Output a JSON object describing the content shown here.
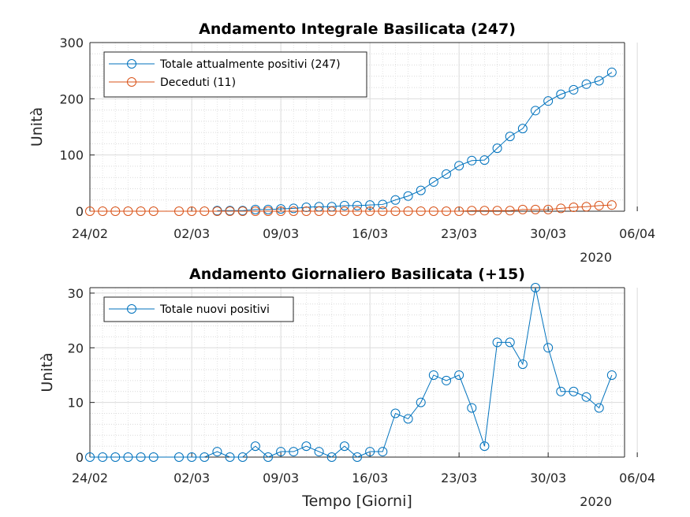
{
  "chart_data": [
    {
      "type": "line",
      "title": "Andamento Integrale Basilicata (247)",
      "xlabel": "",
      "ylabel": "Unità",
      "x": [
        "24/02",
        "25/02",
        "26/02",
        "27/02",
        "28/02",
        "29/02",
        "01/03",
        "02/03",
        "03/03",
        "04/03",
        "05/03",
        "06/03",
        "07/03",
        "08/03",
        "09/03",
        "10/03",
        "11/03",
        "12/03",
        "13/03",
        "14/03",
        "15/03",
        "16/03",
        "17/03",
        "18/03",
        "19/03",
        "20/03",
        "21/03",
        "22/03",
        "23/03",
        "24/03",
        "25/03",
        "26/03",
        "27/03",
        "28/03",
        "29/03",
        "30/03",
        "31/03",
        "01/04",
        "02/04",
        "03/04",
        "04/04"
      ],
      "xticks": [
        "24/02",
        "02/03",
        "09/03",
        "16/03",
        "23/03",
        "30/03",
        "06/04"
      ],
      "xyear": "2020",
      "yticks": [
        0,
        100,
        200,
        300
      ],
      "ylim": [
        0,
        300
      ],
      "grid": true,
      "legend": "top-left",
      "series": [
        {
          "name": "Totale attualmente positivi (247)",
          "color": "#0072BD",
          "values": [
            null,
            null,
            null,
            null,
            null,
            null,
            null,
            null,
            null,
            1,
            1,
            1,
            3,
            3,
            4,
            5,
            7,
            8,
            8,
            10,
            10,
            11,
            12,
            20,
            27,
            37,
            52,
            66,
            81,
            90,
            91,
            112,
            133,
            147,
            179,
            196,
            208,
            216,
            226,
            232,
            247
          ]
        },
        {
          "name": "Deceduti (11)",
          "color": "#D95319",
          "values": [
            0,
            0,
            0,
            0,
            0,
            0,
            0,
            0,
            0,
            0,
            0,
            0,
            0,
            0,
            0,
            0,
            0,
            0,
            0,
            0,
            0,
            0,
            0,
            0,
            0,
            0,
            0,
            0,
            0,
            1,
            1,
            1,
            1,
            3,
            3,
            3,
            5,
            7,
            8,
            10,
            11
          ]
        }
      ]
    },
    {
      "type": "line",
      "title": "Andamento Giornaliero Basilicata (+15)",
      "xlabel": "Tempo [Giorni]",
      "ylabel": "Unità",
      "x": [
        "24/02",
        "25/02",
        "26/02",
        "27/02",
        "28/02",
        "29/02",
        "01/03",
        "02/03",
        "03/03",
        "04/03",
        "05/03",
        "06/03",
        "07/03",
        "08/03",
        "09/03",
        "10/03",
        "11/03",
        "12/03",
        "13/03",
        "14/03",
        "15/03",
        "16/03",
        "17/03",
        "18/03",
        "19/03",
        "20/03",
        "21/03",
        "22/03",
        "23/03",
        "24/03",
        "25/03",
        "26/03",
        "27/03",
        "28/03",
        "29/03",
        "30/03",
        "31/03",
        "01/04",
        "02/04",
        "03/04",
        "04/04"
      ],
      "xticks": [
        "24/02",
        "02/03",
        "09/03",
        "16/03",
        "23/03",
        "30/03",
        "06/04"
      ],
      "xyear": "2020",
      "yticks": [
        0,
        10,
        20,
        30
      ],
      "ylim": [
        0,
        31
      ],
      "grid": true,
      "legend": "top-left",
      "series": [
        {
          "name": "Totale nuovi positivi",
          "color": "#0072BD",
          "values": [
            0,
            0,
            0,
            0,
            0,
            0,
            0,
            0,
            0,
            1,
            0,
            0,
            2,
            0,
            1,
            1,
            2,
            1,
            0,
            2,
            0,
            1,
            1,
            8,
            7,
            10,
            15,
            14,
            15,
            9,
            2,
            21,
            21,
            17,
            31,
            20,
            12,
            12,
            11,
            9,
            15
          ]
        }
      ]
    }
  ]
}
